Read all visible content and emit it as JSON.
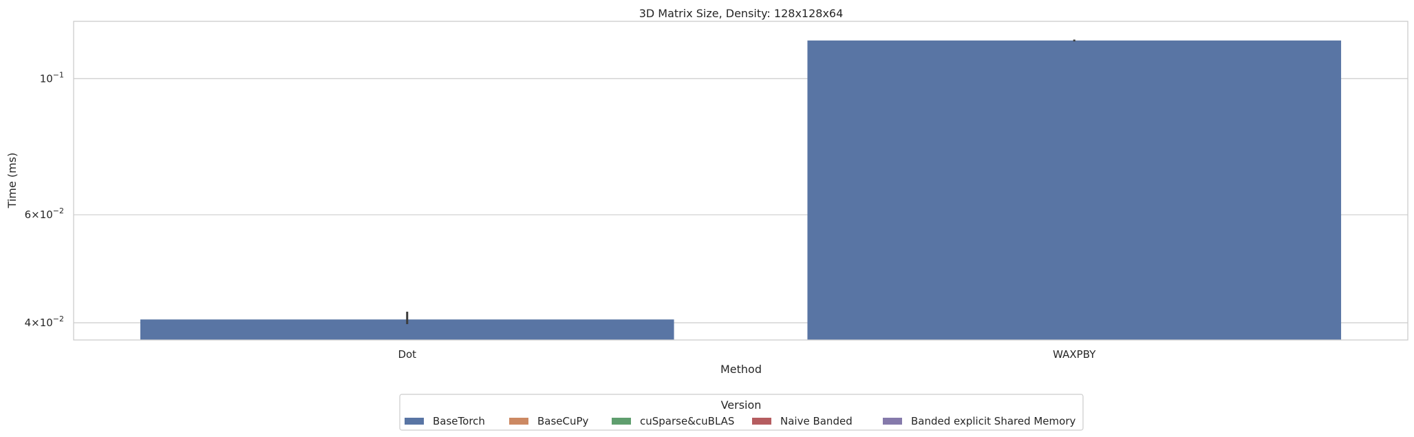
{
  "chart_data": {
    "type": "bar",
    "title": "3D Matrix Size, Density: 128x128x64",
    "xlabel": "Method",
    "ylabel": "Time (ms)",
    "y_scale": "log",
    "ylim": [
      0.0375,
      0.124
    ],
    "categories": [
      "Dot",
      "WAXPBY"
    ],
    "series": [
      {
        "name": "BaseTorch",
        "color": "#5975a4",
        "values": [
          0.0405,
          0.1154
        ],
        "error": [
          [
            0.0398,
            0.0417
          ],
          [
            0.115,
            0.1158
          ]
        ]
      },
      {
        "name": "BaseCuPy",
        "color": "#cc8963",
        "values": [
          null,
          null
        ]
      },
      {
        "name": "cuSparse&cuBLAS",
        "color": "#5f9e6e",
        "values": [
          null,
          null
        ]
      },
      {
        "name": "Naive Banded",
        "color": "#b55d60",
        "values": [
          null,
          null
        ]
      },
      {
        "name": "Banded explicit Shared Memory",
        "color": "#857aab",
        "values": [
          null,
          null
        ]
      }
    ],
    "y_ticks": [
      {
        "value": 0.04,
        "mantissa": "4",
        "times": "×",
        "base": "10",
        "exp": "−2"
      },
      {
        "value": 0.06,
        "mantissa": "6",
        "times": "×",
        "base": "10",
        "exp": "−2"
      },
      {
        "value": 0.1,
        "mantissa": "",
        "times": "",
        "base": "10",
        "exp": "−1"
      }
    ],
    "grid": true,
    "legend": {
      "title": "Version",
      "placement": "bottom-center"
    }
  }
}
